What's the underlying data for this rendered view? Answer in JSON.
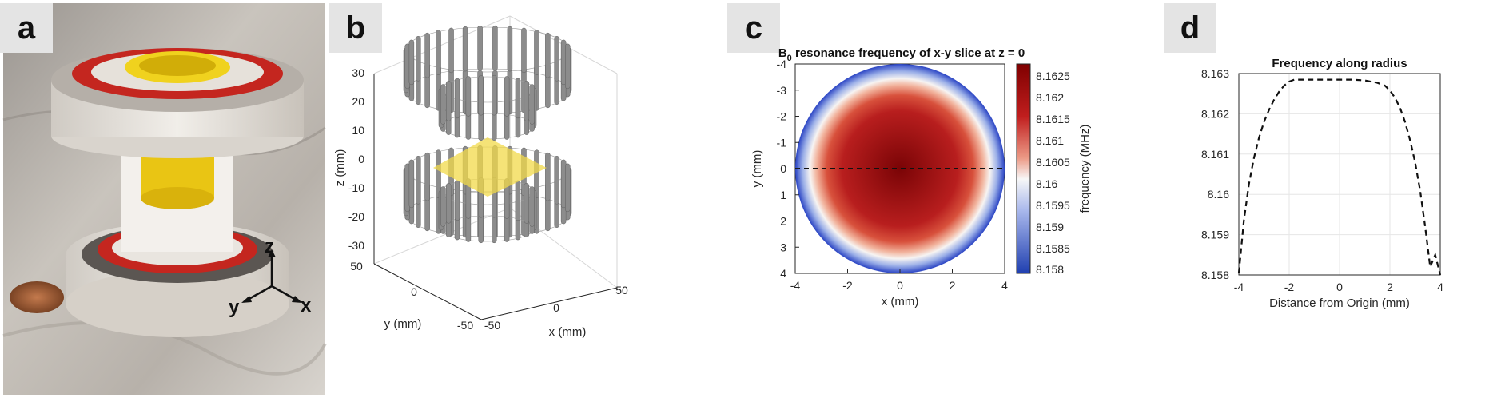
{
  "figure": {
    "panel_a": {
      "label": "a",
      "axes": {
        "z": "z",
        "y": "y",
        "x": "x"
      }
    },
    "panel_b": {
      "label": "b",
      "z_axis_label": "z (mm)",
      "y_axis_label": "y (mm)",
      "x_axis_label": "x (mm)",
      "z_ticks": [
        "30",
        "20",
        "10",
        "0",
        "-10",
        "-20",
        "-30"
      ],
      "y_ticks": [
        "50",
        "0",
        "-50"
      ],
      "x_ticks": [
        "-50",
        "0",
        "50"
      ]
    },
    "panel_c": {
      "label": "c",
      "title_prefix": "B",
      "title_sub": "0",
      "title_rest": " resonance frequency of x-y slice at z = 0",
      "xlabel": "x (mm)",
      "ylabel": "y (mm)",
      "x_ticks": [
        "-4",
        "-2",
        "0",
        "2",
        "4"
      ],
      "y_ticks": [
        "-4",
        "-3",
        "-2",
        "-1",
        "0",
        "1",
        "2",
        "3",
        "4"
      ],
      "colorbar_label": "frequency (MHz)",
      "colorbar_ticks": [
        "8.1625",
        "8.162",
        "8.1615",
        "8.161",
        "8.1605",
        "8.16",
        "8.1595",
        "8.159",
        "8.1585",
        "8.158"
      ],
      "colors": {
        "high": "#7f0000",
        "mid": "#f7f7f7",
        "low": "#1f3fb0"
      }
    },
    "panel_d": {
      "label": "d",
      "title": "Frequency along radius",
      "xlabel": "Distance from Origin (mm)",
      "x_ticks": [
        "-4",
        "-2",
        "0",
        "2",
        "4"
      ],
      "y_ticks": [
        "8.163",
        "8.162",
        "8.161",
        "8.16",
        "8.159",
        "8.158"
      ]
    }
  },
  "chart_data": [
    {
      "type": "line",
      "title": "Frequency along radius",
      "xlabel": "Distance from Origin (mm)",
      "ylabel": "",
      "xlim": [
        -4,
        4
      ],
      "ylim": [
        8.158,
        8.163
      ],
      "grid": true,
      "series": [
        {
          "name": "frequency",
          "style": "dashed",
          "x": [
            -4.0,
            -3.8,
            -3.6,
            -3.4,
            -3.2,
            -3.0,
            -2.8,
            -2.6,
            -2.4,
            -2.2,
            -2.0,
            -1.8,
            -1.5,
            -1.0,
            -0.5,
            0.0,
            0.5,
            1.0,
            1.5,
            1.8,
            2.0,
            2.2,
            2.4,
            2.6,
            2.8,
            3.0,
            3.2,
            3.4,
            3.6,
            3.8,
            4.0
          ],
          "y": [
            8.15805,
            8.15935,
            8.16025,
            8.1609,
            8.1614,
            8.1618,
            8.1621,
            8.16235,
            8.16255,
            8.1627,
            8.1628,
            8.16285,
            8.16285,
            8.16285,
            8.16285,
            8.16285,
            8.16285,
            8.16283,
            8.16277,
            8.1627,
            8.16258,
            8.1624,
            8.16215,
            8.1618,
            8.16135,
            8.1608,
            8.1601,
            8.1592,
            8.1582,
            8.1585,
            8.158
          ]
        }
      ]
    },
    {
      "type": "heatmap",
      "title": "B0 resonance frequency of x-y slice at z = 0",
      "xlabel": "x (mm)",
      "ylabel": "y (mm)",
      "xlim": [
        -4,
        4
      ],
      "ylim": [
        -4,
        4
      ],
      "colorbar": {
        "label": "frequency (MHz)",
        "range": [
          8.158,
          8.16285
        ]
      },
      "field": {
        "center_value": 8.16285,
        "edge_value": 8.158,
        "radius": 4
      }
    }
  ]
}
